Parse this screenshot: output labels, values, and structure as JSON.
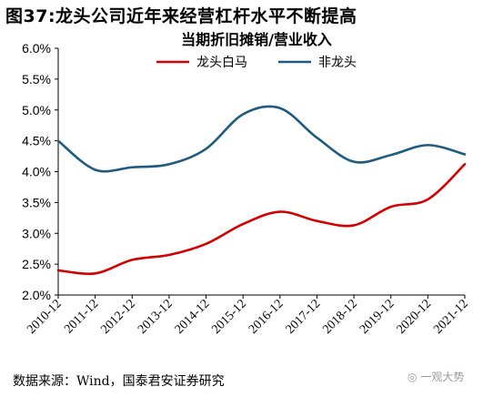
{
  "figure_title": "图37:龙头公司近年来经营杠杆水平不断提高",
  "source_note": "数据来源：Wind，国泰君安证券研究",
  "watermark_text": "一观大势",
  "chart_data": {
    "type": "line",
    "title": "当期折旧摊销/营业收入",
    "xlabel": "",
    "ylabel": "",
    "categories": [
      "2010-12",
      "2011-12",
      "2012-12",
      "2013-12",
      "2014-12",
      "2015-12",
      "2016-12",
      "2017-12",
      "2018-12",
      "2019-12",
      "2020-12",
      "2021-12"
    ],
    "ylim": [
      2.0,
      6.0
    ],
    "yticks": [
      "2.0%",
      "2.5%",
      "3.0%",
      "3.5%",
      "4.0%",
      "4.5%",
      "5.0%",
      "5.5%",
      "6.0%"
    ],
    "grid": false,
    "legend_position": "top",
    "series": [
      {
        "name": "龙头白马",
        "color": "#d40000",
        "values": [
          2.4,
          2.35,
          2.57,
          2.65,
          2.83,
          3.15,
          3.35,
          3.2,
          3.13,
          3.43,
          3.55,
          4.12
        ]
      },
      {
        "name": "非龙头",
        "color": "#1f5a80",
        "values": [
          4.5,
          4.03,
          4.07,
          4.12,
          4.37,
          4.93,
          5.03,
          4.55,
          4.16,
          4.27,
          4.43,
          4.28
        ]
      }
    ]
  }
}
